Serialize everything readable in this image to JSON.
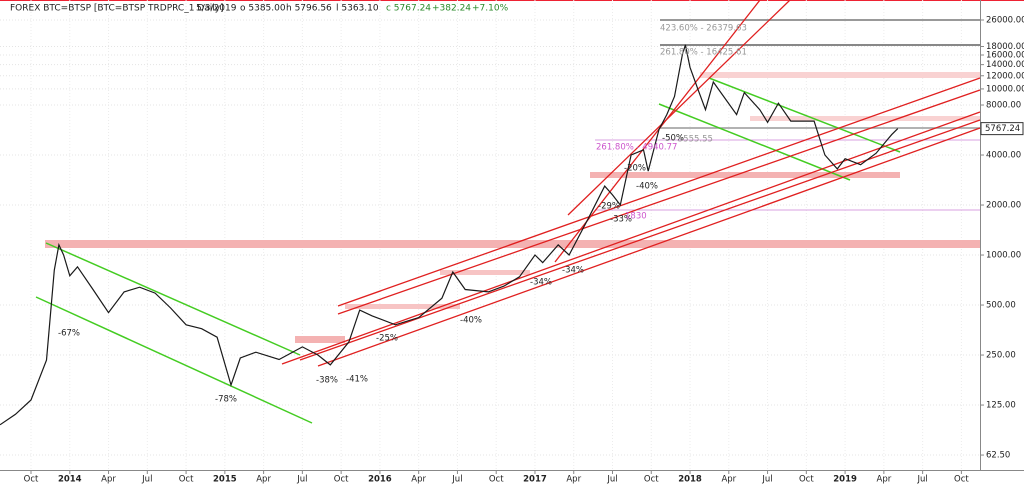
{
  "header": {
    "symbol": "FOREX BTC=BTSP [BTC=BTSP TRDPRC_1 Daily]",
    "date": "5/3/2019",
    "open": "o 5385.00",
    "high": "h 5796.56",
    "low": "l 5363.10",
    "close": "c 5767.24",
    "change": "+382.24",
    "change_pct": "+7.10%"
  },
  "chart_data": {
    "type": "line",
    "log_scale": true,
    "grid": true,
    "color": "#1a1a1a",
    "x": [
      2013.55,
      2013.65,
      2013.75,
      2013.85,
      2013.9,
      2013.93,
      2013.96,
      2014.0,
      2014.05,
      2014.15,
      2014.25,
      2014.35,
      2014.45,
      2014.55,
      2014.65,
      2014.75,
      2014.85,
      2014.95,
      2015.04,
      2015.1,
      2015.2,
      2015.35,
      2015.5,
      2015.6,
      2015.68,
      2015.8,
      2015.87,
      2015.95,
      2016.1,
      2016.25,
      2016.4,
      2016.47,
      2016.55,
      2016.7,
      2016.8,
      2016.9,
      2017.0,
      2017.05,
      2017.15,
      2017.22,
      2017.35,
      2017.45,
      2017.5,
      2017.55,
      2017.62,
      2017.7,
      2017.73,
      2017.8,
      2017.85,
      2017.9,
      2017.95,
      2017.97,
      2018.0,
      2018.05,
      2018.1,
      2018.15,
      2018.3,
      2018.35,
      2018.45,
      2018.5,
      2018.57,
      2018.65,
      2018.8,
      2018.87,
      2018.95,
      2019.0,
      2019.1,
      2019.2,
      2019.3,
      2019.34
    ],
    "values": [
      95,
      110,
      134,
      233,
      812,
      1150,
      1000,
      750,
      850,
      620,
      450,
      600,
      640,
      590,
      480,
      380,
      360,
      320,
      165,
      240,
      260,
      235,
      280,
      250,
      218,
      300,
      466,
      430,
      380,
      420,
      550,
      790,
      620,
      600,
      650,
      740,
      1000,
      900,
      1150,
      1000,
      1700,
      2600,
      2300,
      2000,
      4000,
      4300,
      3200,
      5700,
      7000,
      9000,
      16000,
      18400,
      13500,
      10000,
      7500,
      11000,
      7000,
      9500,
      7500,
      6300,
      8200,
      6400,
      6400,
      4000,
      3300,
      3800,
      3500,
      4100,
      5300,
      5767.24
    ],
    "xlim": [
      2013.55,
      2019.87
    ],
    "ylim": [
      50.8,
      34300
    ],
    "xticks": [
      {
        "value": 2013.75,
        "label": "Oct"
      },
      2014,
      {
        "value": 2014.25,
        "label": "Apr"
      },
      {
        "value": 2014.5,
        "label": "Jul"
      },
      {
        "value": 2014.75,
        "label": "Oct"
      },
      2015,
      {
        "value": 2015.25,
        "label": "Apr"
      },
      {
        "value": 2015.5,
        "label": "Jul"
      },
      {
        "value": 2015.75,
        "label": "Oct"
      },
      2016,
      {
        "value": 2016.25,
        "label": "Apr"
      },
      {
        "value": 2016.5,
        "label": "Jul"
      },
      {
        "value": 2016.75,
        "label": "Oct"
      },
      2017,
      {
        "value": 2017.25,
        "label": "Apr"
      },
      {
        "value": 2017.5,
        "label": "Jul"
      },
      {
        "value": 2017.75,
        "label": "Oct"
      },
      2018,
      {
        "value": 2018.25,
        "label": "Apr"
      },
      {
        "value": 2018.5,
        "label": "Jul"
      },
      {
        "value": 2018.75,
        "label": "Oct"
      },
      2019,
      {
        "value": 2019.25,
        "label": "Apr"
      },
      {
        "value": 2019.5,
        "label": "Jul"
      },
      {
        "value": 2019.75,
        "label": "Oct"
      }
    ],
    "yticks": [
      {
        "value": 26000,
        "label": "26000.00"
      },
      {
        "value": 18000,
        "label": "18000.00"
      },
      {
        "value": 16000,
        "label": "16000.00"
      },
      {
        "value": 14000,
        "label": "14000.00"
      },
      {
        "value": 12000,
        "label": "12000.00"
      },
      {
        "value": 10000,
        "label": "10000.00"
      },
      {
        "value": 8000,
        "label": "8000.00"
      },
      {
        "value": 4000,
        "label": "4000.00"
      },
      {
        "value": 2000,
        "label": "2000.00"
      },
      {
        "value": 1000,
        "label": "1000.00"
      },
      {
        "value": 500,
        "label": "500.00"
      },
      {
        "value": 250,
        "label": "250.00"
      },
      {
        "value": 125,
        "label": "125.00"
      },
      {
        "value": 62.5,
        "label": "62.50"
      }
    ],
    "annotations": [
      "-67%",
      "-78%",
      "-38%",
      "-41%",
      "-25%",
      "-40%",
      "-34%",
      "-34%",
      "-29%",
      "-33%",
      "-20%",
      "-40%",
      "-50%"
    ],
    "fib_labels": [
      "423.60% - 26379.63",
      "261.80% - 16425.61",
      "261.80% - 4940.77",
      "- 5555.55",
      "1830"
    ]
  }
}
